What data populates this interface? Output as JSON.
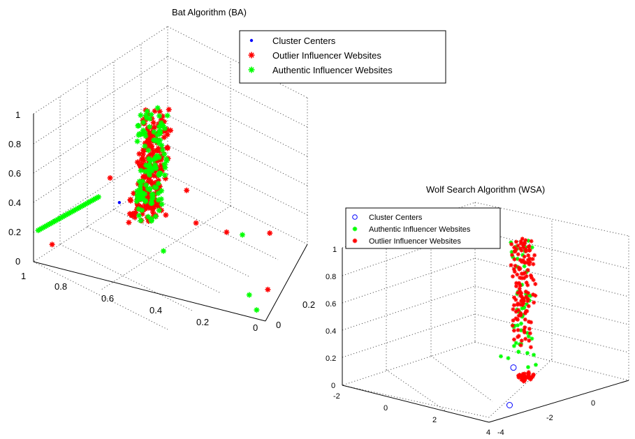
{
  "chart_data": [
    {
      "type": "scatter",
      "projection": "3d",
      "title": "Bat Algorithm (BA)",
      "grid": true,
      "legend_position": "top-right",
      "z_ticks": [
        "0",
        "0.2",
        "0.4",
        "0.6",
        "0.8",
        "1"
      ],
      "x_ticks": [
        "1",
        "0.8",
        "0.6",
        "0.4",
        "0.2",
        "0"
      ],
      "y_ticks": [
        "0",
        "0.2"
      ],
      "xlim": [
        0,
        1
      ],
      "ylim": [
        0,
        0.3
      ],
      "zlim": [
        0,
        1
      ],
      "series": [
        {
          "name": "Cluster Centers",
          "marker": "dot",
          "color": "#0000ff",
          "points": [
            [
              0.66,
              0.05,
              0.45
            ]
          ]
        },
        {
          "name": "Outlier Influencer Websites",
          "marker": "star",
          "color": "#ff0000",
          "clusters": [
            {
              "x": [
                0.48,
                0.58
              ],
              "y": [
                0.02,
                0.12
              ],
              "z": [
                0.55,
                1.05
              ],
              "count": 150
            },
            {
              "x": [
                0.52,
                0.62
              ],
              "y": [
                0.05,
                0.14
              ],
              "z": [
                0.32,
                0.5
              ],
              "count": 90
            }
          ],
          "points": [
            [
              0.95,
              0.05,
              0.05
            ],
            [
              0.45,
              0.25,
              0.05
            ],
            [
              0.3,
              0.22,
              0.1
            ],
            [
              0.15,
              0.28,
              0.05
            ],
            [
              0.6,
              0.15,
              0.2
            ],
            [
              0.55,
              0.2,
              0.15
            ],
            [
              0.05,
              0.1,
              0.02
            ],
            [
              0.4,
              0.1,
              0.55
            ],
            [
              0.7,
              0.05,
              0.6
            ]
          ]
        },
        {
          "name": "Authentic Influencer Websites",
          "marker": "star",
          "color": "#00ff00",
          "clusters": [
            {
              "x": [
                0.48,
                0.58
              ],
              "y": [
                0.02,
                0.12
              ],
              "z": [
                0.55,
                1.05
              ],
              "count": 80
            },
            {
              "x": [
                0.52,
                0.62
              ],
              "y": [
                0.05,
                0.14
              ],
              "z": [
                0.32,
                0.5
              ],
              "count": 40
            }
          ],
          "line": {
            "x": [
              0.98,
              0.72
            ],
            "y": [
              0.0,
              0.0
            ],
            "z": [
              0.22,
              0.55
            ],
            "count": 38
          },
          "points": [
            [
              0.1,
              0.05,
              0.05
            ],
            [
              0.05,
              0.02,
              0.02
            ],
            [
              0.25,
              0.25,
              0.05
            ],
            [
              0.5,
              0.1,
              0.1
            ]
          ]
        }
      ]
    },
    {
      "type": "scatter",
      "projection": "3d",
      "title": "Wolf Search Algorithm (WSA)",
      "grid": true,
      "legend_position": "top-left",
      "z_ticks": [
        "0",
        "0.2",
        "0.4",
        "0.6",
        "0.8",
        "1"
      ],
      "x_ticks": [
        "-2",
        "0",
        "2",
        "4"
      ],
      "y_ticks": [
        "-4",
        "-2",
        "0"
      ],
      "xlim": [
        -2,
        4
      ],
      "ylim": [
        -4,
        1
      ],
      "zlim": [
        0,
        1
      ],
      "series": [
        {
          "name": "Cluster Centers",
          "marker": "circle",
          "color": "#0000ff",
          "points": [
            [
              1.0,
              -0.5,
              0.05
            ],
            [
              3.7,
              -3.0,
              0.05
            ]
          ]
        },
        {
          "name": "Authentic Influencer Websites",
          "marker": "star",
          "color": "#00ff00",
          "clusters": [
            {
              "x": [
                1.2,
                1.6
              ],
              "y": [
                -0.8,
                -0.2
              ],
              "z": [
                0.15,
                1.0
              ],
              "count": 50
            }
          ],
          "points": [
            [
              0.6,
              -0.6,
              0.12
            ],
            [
              0.9,
              -0.6,
              0.12
            ],
            [
              1.6,
              -0.5,
              0.08
            ],
            [
              1.8,
              -0.4,
              0.1
            ]
          ]
        },
        {
          "name": "Outlier Influencer Websites",
          "marker": "star",
          "color": "#ff0000",
          "clusters": [
            {
              "x": [
                1.2,
                1.6
              ],
              "y": [
                -0.8,
                -0.2
              ],
              "z": [
                0.2,
                1.0
              ],
              "count": 130
            },
            {
              "x": [
                1.6,
                2.0
              ],
              "y": [
                -0.9,
                -0.5
              ],
              "z": [
                0.01,
                0.05
              ],
              "count": 40
            }
          ],
          "points": []
        }
      ]
    }
  ],
  "panels": [
    {
      "title": "Bat Algorithm (BA)",
      "z_ticks": [
        "0",
        "0.2",
        "0.4",
        "0.6",
        "0.8",
        "1"
      ],
      "x_ticks": [
        "1",
        "0.8",
        "0.6",
        "0.4",
        "0.2",
        "0"
      ],
      "y_ticks": [
        "0",
        "0.2"
      ],
      "legend": [
        "Cluster Centers",
        "Outlier Influencer Websites",
        "Authentic Influencer Websites"
      ]
    },
    {
      "title": "Wolf Search Algorithm (WSA)",
      "z_ticks": [
        "0",
        "0.2",
        "0.4",
        "0.6",
        "0.8",
        "1"
      ],
      "x_ticks": [
        "-2",
        "0",
        "2",
        "4"
      ],
      "y_ticks": [
        "-4",
        "-2",
        "0"
      ],
      "legend": [
        "Cluster Centers",
        "Authentic Influencer Websites",
        "Outlier Influencer Websites"
      ]
    }
  ],
  "colors": {
    "red": "#ff0000",
    "green": "#00ff00",
    "blue": "#0000ff"
  }
}
